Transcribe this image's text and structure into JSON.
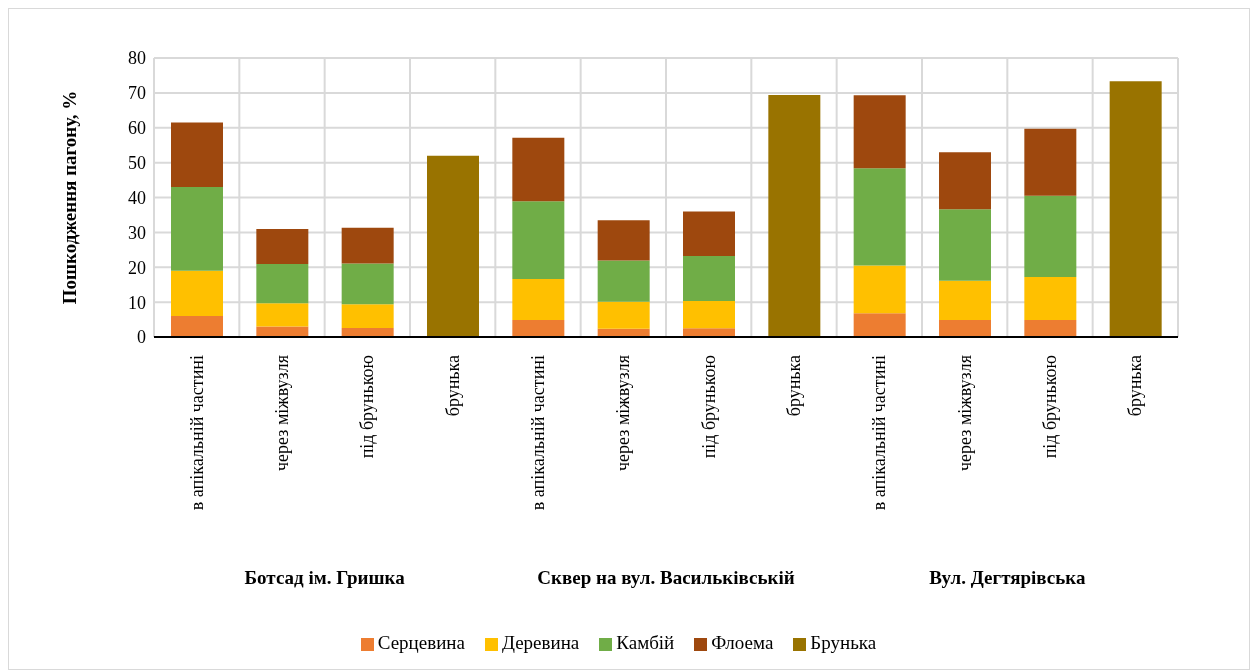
{
  "chart_data": {
    "type": "bar",
    "stacked": true,
    "ylabel": "Пошкодження пагону, %",
    "categories": [
      "в апікальній частині",
      "через міжвузля",
      "під брунькою",
      "брунька",
      "в апікальній частині",
      "через міжвузля",
      "під брунькою",
      "брунька",
      "в апікальній частині",
      "через міжвузля",
      "під брунькою",
      "брунька"
    ],
    "series": [
      {
        "name": "Серцевина",
        "color": "#ed7d31",
        "values": [
          6,
          3,
          2.6,
          null,
          4.9,
          2.4,
          2.5,
          null,
          6.8,
          4.9,
          4.9,
          null
        ]
      },
      {
        "name": "Деревина",
        "color": "#ffc000",
        "values": [
          13,
          6.7,
          6.8,
          null,
          11.7,
          7.7,
          7.8,
          null,
          13.7,
          11.2,
          12.3,
          null
        ]
      },
      {
        "name": "Камбій",
        "color": "#70ad47",
        "values": [
          24,
          11.2,
          11.7,
          null,
          22.3,
          11.8,
          12.9,
          null,
          27.9,
          20.5,
          23.3,
          null
        ]
      },
      {
        "name": "Флоема",
        "color": "#9e480e",
        "values": [
          18.5,
          10.1,
          10.2,
          null,
          18.2,
          11.6,
          12.8,
          null,
          20.9,
          16.4,
          19.2,
          null
        ]
      },
      {
        "name": "Брунька",
        "color": "#997300",
        "values": [
          null,
          null,
          null,
          52,
          null,
          null,
          null,
          69.4,
          null,
          null,
          null,
          73.3
        ]
      }
    ],
    "annotations": [
      "Ботсад ім. Гришка",
      "Сквер на вул. Васильківській",
      "Вул. Дегтярівська"
    ],
    "ylim": [
      0,
      80
    ],
    "yticks": [
      0,
      10,
      20,
      30,
      40,
      50,
      60,
      70,
      80
    ],
    "grid": true,
    "legend": "bottom"
  }
}
